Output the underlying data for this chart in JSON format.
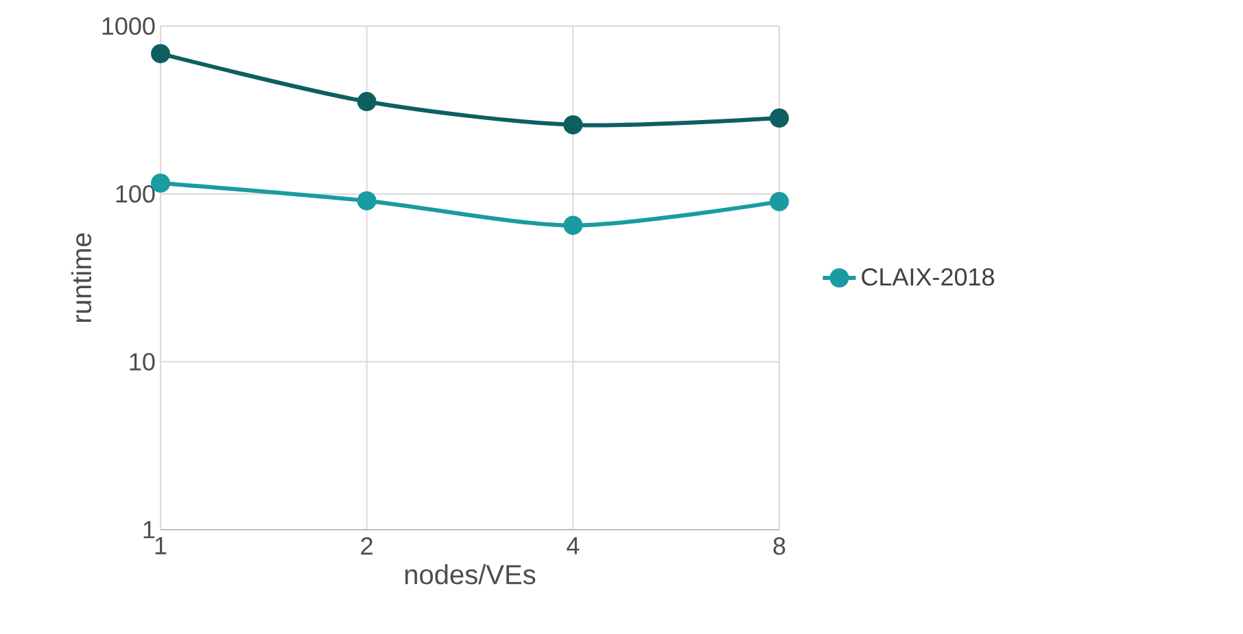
{
  "chart_data": {
    "type": "line",
    "xlabel": "nodes/VEs",
    "ylabel": "runtime",
    "categories": [
      "1",
      "2",
      "4",
      "8"
    ],
    "series": [
      {
        "name": "CLAIX-2018",
        "color": "#1a9ba1",
        "values": [
          116,
          91,
          65,
          90
        ]
      },
      {
        "color": "#0d5f60",
        "values": [
          685,
          355,
          258,
          283
        ]
      }
    ],
    "log": "y",
    "ylim": [
      1,
      1000
    ],
    "yticks": [
      1,
      10,
      100,
      1000
    ],
    "grid": true,
    "legend": "right",
    "marker": "circle",
    "line_style": "solid"
  }
}
